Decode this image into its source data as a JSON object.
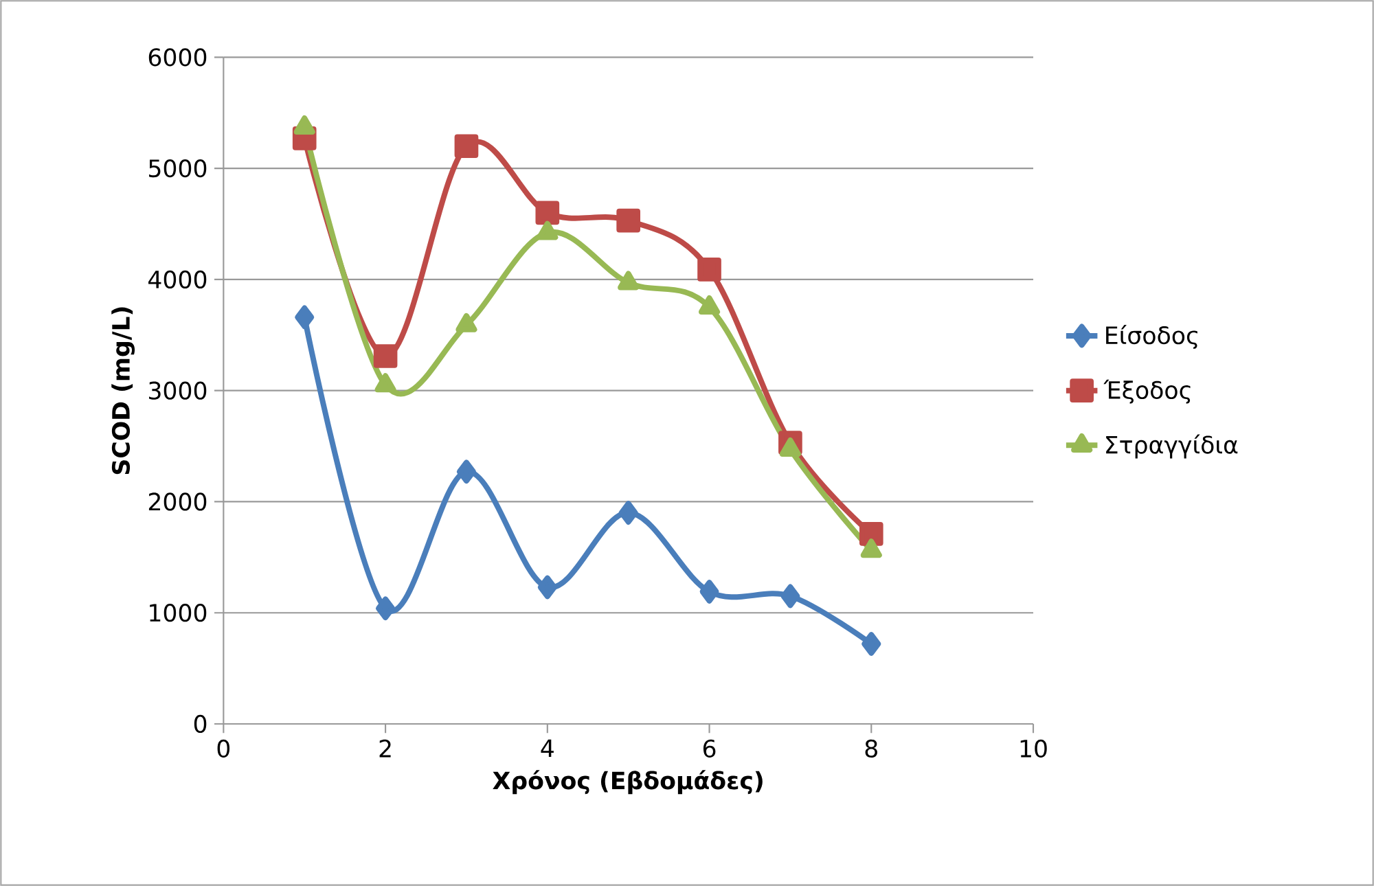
{
  "chart_data": {
    "type": "line",
    "xlabel": "Χρόνος (Εβδομάδες)",
    "ylabel": "SCOD (mg/L)",
    "x": [
      1,
      2,
      3,
      4,
      5,
      6,
      7,
      8
    ],
    "xlim": [
      0,
      10
    ],
    "xticks": [
      0,
      2,
      4,
      6,
      8,
      10
    ],
    "ylim": [
      0,
      6000
    ],
    "yticks": [
      0,
      1000,
      2000,
      3000,
      4000,
      5000,
      6000
    ],
    "grid": "y",
    "legend": "right",
    "line_style": "solid",
    "series": [
      {
        "name": "Είσοδος",
        "color": "#4a7ebb",
        "marker": "diamond",
        "values": [
          3660,
          1040,
          2270,
          1230,
          1900,
          1190,
          1150,
          720
        ]
      },
      {
        "name": "Έξοδος",
        "color": "#be4b48",
        "marker": "square",
        "values": [
          5270,
          3310,
          5200,
          4600,
          4530,
          4090,
          2530,
          1710
        ]
      },
      {
        "name": "Στραγγίδια",
        "color": "#98b954",
        "marker": "triangle",
        "values": [
          5370,
          3050,
          3590,
          4420,
          3970,
          3750,
          2470,
          1560
        ]
      }
    ]
  }
}
